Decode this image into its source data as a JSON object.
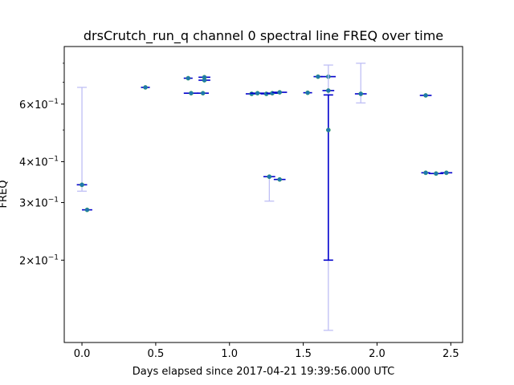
{
  "chart_data": {
    "type": "scatter",
    "title": "drsCrutch_run_q channel 0 spectral line FREQ over time",
    "xlabel": "Days elapsed since 2017-04-21 19:39:56.000 UTC",
    "ylabel": "FREQ",
    "xlim": [
      -0.12,
      2.58
    ],
    "ylim": [
      0.112,
      0.9
    ],
    "yscale": "log",
    "grid": false,
    "x_ticks": [
      0.0,
      0.5,
      1.0,
      1.5,
      2.0,
      2.5
    ],
    "x_tick_labels": [
      "0.0",
      "0.5",
      "1.0",
      "1.5",
      "2.0",
      "2.5"
    ],
    "y_ticks": [
      {
        "value": 0.2,
        "mant": "2",
        "exp": "−1"
      },
      {
        "value": 0.3,
        "mant": "3",
        "exp": "−1"
      },
      {
        "value": 0.4,
        "mant": "4",
        "exp": "−1"
      },
      {
        "value": 0.6,
        "mant": "6",
        "exp": "−1"
      }
    ],
    "y_minor_ticks": [
      0.5,
      0.7,
      0.8
    ],
    "colors": {
      "marker": "#1f77b4",
      "bar": "#0000cc",
      "errorbar_faint": "#bfbff5"
    },
    "points": [
      {
        "x": 0.0,
        "y": 0.34,
        "xerr": 0.035,
        "ylo": 0.325,
        "yhi": 0.675,
        "faint": true
      },
      {
        "x": 0.035,
        "y": 0.285,
        "xerr": 0.035
      },
      {
        "x": 0.43,
        "y": 0.675,
        "xerr": 0.03
      },
      {
        "x": 0.72,
        "y": 0.72,
        "xerr": 0.03
      },
      {
        "x": 0.74,
        "y": 0.648,
        "xerr": 0.05
      },
      {
        "x": 0.82,
        "y": 0.648,
        "xerr": 0.04
      },
      {
        "x": 0.83,
        "y": 0.725,
        "xerr": 0.04
      },
      {
        "x": 0.83,
        "y": 0.71,
        "xerr": 0.04
      },
      {
        "x": 1.15,
        "y": 0.645,
        "xerr": 0.04
      },
      {
        "x": 1.19,
        "y": 0.648,
        "xerr": 0.05
      },
      {
        "x": 1.25,
        "y": 0.645,
        "xerr": 0.04
      },
      {
        "x": 1.27,
        "y": 0.36,
        "xerr": 0.04,
        "ylo": 0.303,
        "yhi": 0.36,
        "faint": true
      },
      {
        "x": 1.29,
        "y": 0.648,
        "xerr": 0.04
      },
      {
        "x": 1.34,
        "y": 0.652,
        "xerr": 0.05
      },
      {
        "x": 1.34,
        "y": 0.353,
        "xerr": 0.04
      },
      {
        "x": 1.53,
        "y": 0.65,
        "xerr": 0.03
      },
      {
        "x": 1.6,
        "y": 0.728,
        "xerr": 0.03
      },
      {
        "x": 1.67,
        "y": 0.728,
        "xerr": 0.05
      },
      {
        "x": 1.67,
        "y": 0.66,
        "xerr": 0.04,
        "ylo": 0.122,
        "yhi": 0.79,
        "faint": true
      },
      {
        "x": 1.67,
        "y": 0.5,
        "xerr": 0.0,
        "ylo": 0.2,
        "yhi": 0.64,
        "faint": false
      },
      {
        "x": 1.89,
        "y": 0.645,
        "xerr": 0.04,
        "ylo": 0.605,
        "yhi": 0.8,
        "faint": true
      },
      {
        "x": 2.33,
        "y": 0.638,
        "xerr": 0.04
      },
      {
        "x": 2.33,
        "y": 0.37,
        "xerr": 0.03
      },
      {
        "x": 2.4,
        "y": 0.368,
        "xerr": 0.05
      },
      {
        "x": 2.47,
        "y": 0.37,
        "xerr": 0.04
      }
    ]
  }
}
